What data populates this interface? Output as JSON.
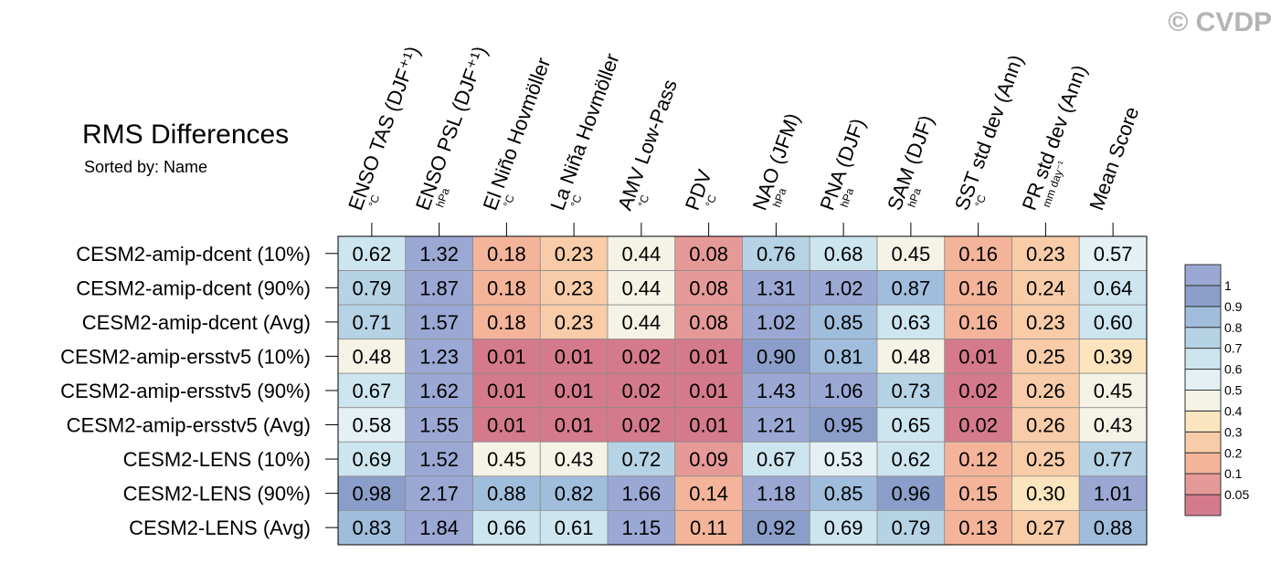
{
  "watermark": "© CVDP",
  "chart_data": {
    "type": "heatmap",
    "title": "RMS Differences",
    "subtitle": "Sorted by: Name",
    "columns": [
      {
        "label": "ENSO TAS (DJF⁺¹)",
        "unit": "°C"
      },
      {
        "label": "ENSO PSL (DJF⁺¹)",
        "unit": "hPa"
      },
      {
        "label": "El Niño Hovmöller",
        "unit": "°C"
      },
      {
        "label": "La Niña Hovmöller",
        "unit": "°C"
      },
      {
        "label": "AMV Low-Pass",
        "unit": "°C"
      },
      {
        "label": "PDV",
        "unit": "°C"
      },
      {
        "label": "NAO (JFM)",
        "unit": "hPa"
      },
      {
        "label": "PNA (DJF)",
        "unit": "hPa"
      },
      {
        "label": "SAM (DJF)",
        "unit": "hPa"
      },
      {
        "label": "SST std dev (Ann)",
        "unit": "°C"
      },
      {
        "label": "PR std dev (Ann)",
        "unit": "mm day⁻¹"
      },
      {
        "label": "Mean Score",
        "unit": ""
      }
    ],
    "rows": [
      "CESM2-amip-dcent (10%)",
      "CESM2-amip-dcent (90%)",
      "CESM2-amip-dcent (Avg)",
      "CESM2-amip-ersstv5 (10%)",
      "CESM2-amip-ersstv5 (90%)",
      "CESM2-amip-ersstv5 (Avg)",
      "CESM2-LENS (10%)",
      "CESM2-LENS (90%)",
      "CESM2-LENS (Avg)"
    ],
    "values": [
      [
        "0.62",
        "1.32",
        "0.18",
        "0.23",
        "0.44",
        "0.08",
        "0.76",
        "0.68",
        "0.45",
        "0.16",
        "0.23",
        "0.57"
      ],
      [
        "0.79",
        "1.87",
        "0.18",
        "0.23",
        "0.44",
        "0.08",
        "1.31",
        "1.02",
        "0.87",
        "0.16",
        "0.24",
        "0.64"
      ],
      [
        "0.71",
        "1.57",
        "0.18",
        "0.23",
        "0.44",
        "0.08",
        "1.02",
        "0.85",
        "0.63",
        "0.16",
        "0.23",
        "0.60"
      ],
      [
        "0.48",
        "1.23",
        "0.01",
        "0.01",
        "0.02",
        "0.01",
        "0.90",
        "0.81",
        "0.48",
        "0.01",
        "0.25",
        "0.39"
      ],
      [
        "0.67",
        "1.62",
        "0.01",
        "0.01",
        "0.02",
        "0.01",
        "1.43",
        "1.06",
        "0.73",
        "0.02",
        "0.26",
        "0.45"
      ],
      [
        "0.58",
        "1.55",
        "0.01",
        "0.01",
        "0.02",
        "0.01",
        "1.21",
        "0.95",
        "0.65",
        "0.02",
        "0.26",
        "0.43"
      ],
      [
        "0.69",
        "1.52",
        "0.45",
        "0.43",
        "0.72",
        "0.09",
        "0.67",
        "0.53",
        "0.62",
        "0.12",
        "0.25",
        "0.77"
      ],
      [
        "0.98",
        "2.17",
        "0.88",
        "0.82",
        "1.66",
        "0.14",
        "1.18",
        "0.85",
        "0.96",
        "0.15",
        "0.30",
        "1.01"
      ],
      [
        "0.83",
        "1.84",
        "0.66",
        "0.61",
        "1.15",
        "0.11",
        "0.92",
        "0.69",
        "0.79",
        "0.13",
        "0.27",
        "0.88"
      ]
    ],
    "colorbar": {
      "thresholds": [
        0.05,
        0.1,
        0.2,
        0.3,
        0.4,
        0.5,
        0.6,
        0.7,
        0.8,
        0.9,
        1
      ],
      "labels": [
        "0.05",
        "0.1",
        "0.2",
        "0.3",
        "0.4",
        "0.5",
        "0.6",
        "0.7",
        "0.8",
        "0.9",
        "1"
      ],
      "colors": [
        "#d47a8c",
        "#e69a98",
        "#f4b49a",
        "#f8cca8",
        "#fbe5be",
        "#f5f3e6",
        "#e4f0f4",
        "#cde5ef",
        "#b6d3e5",
        "#a0bedc",
        "#8a9ec9",
        "#9aa8d3"
      ]
    }
  }
}
